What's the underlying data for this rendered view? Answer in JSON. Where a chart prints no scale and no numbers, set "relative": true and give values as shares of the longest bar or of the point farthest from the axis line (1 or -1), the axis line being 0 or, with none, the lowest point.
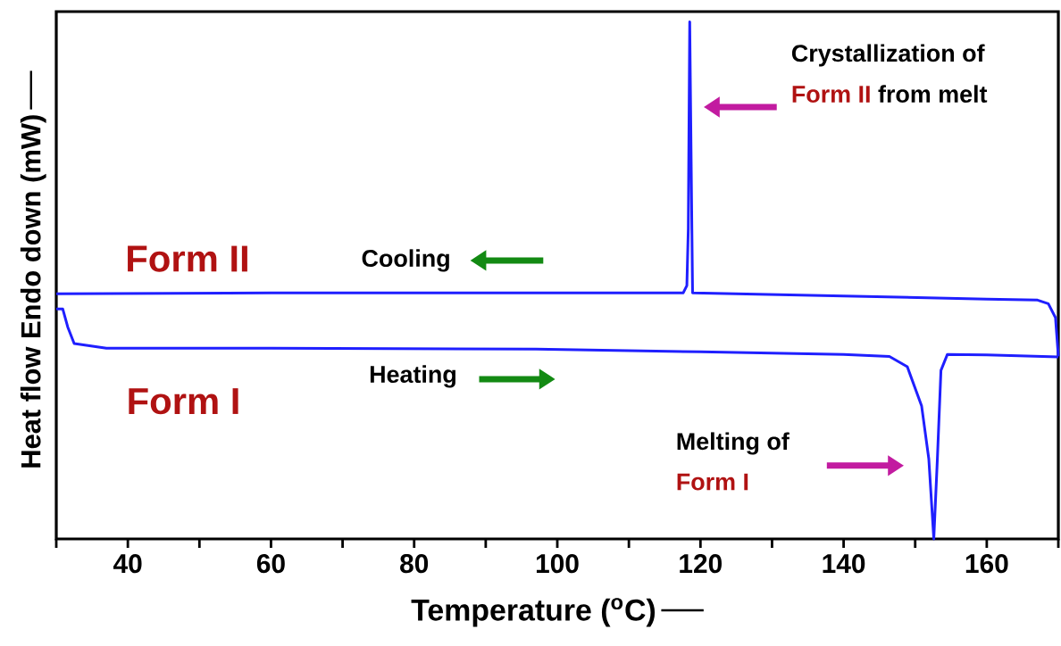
{
  "chart_data": {
    "type": "line",
    "relative": true,
    "xlabel": "Temperature ($^{o}$C)",
    "ylabel": "Heat flow Endo down (mW)",
    "xlim": [
      30,
      170
    ],
    "xticks": [
      {
        "value": 30,
        "label": null
      },
      40,
      {
        "value": 50,
        "label": null
      },
      60,
      {
        "value": 70,
        "label": null
      },
      80,
      {
        "value": 90,
        "label": null
      },
      100,
      {
        "value": 110,
        "label": null
      },
      120,
      {
        "value": 130,
        "label": null
      },
      140,
      {
        "value": 150,
        "label": null
      },
      160,
      {
        "value": 170,
        "label": null
      }
    ],
    "series": [
      {
        "color": "#1f1fff",
        "x": [
          30,
          60,
          90,
          117.6,
          118.1,
          118.3,
          118.5,
          118.8,
          118.9,
          140,
          160,
          167.1,
          168.6,
          169.6,
          170
        ],
        "values": [
          0.474,
          0.476,
          0.476,
          0.476,
          0.49,
          0.6,
          1.0,
          0.6,
          0.476,
          0.47,
          0.464,
          0.462,
          0.455,
          0.428,
          0.353
        ]
      },
      {
        "color": "#1f1fff",
        "x": [
          30,
          30.9,
          31.6,
          32.5,
          37,
          60,
          97,
          120,
          140,
          146.4,
          148.9,
          150.9,
          151.9,
          152.6,
          153.1,
          153.6,
          154.5,
          160,
          170
        ],
        "values": [
          0.445,
          0.445,
          0.41,
          0.378,
          0.369,
          0.369,
          0.367,
          0.362,
          0.357,
          0.353,
          0.333,
          0.257,
          0.155,
          0.0,
          0.155,
          0.326,
          0.357,
          0.356,
          0.352
        ]
      }
    ],
    "annotations": [
      "Form II",
      "Cooling",
      "Form I",
      "Heating",
      "Crystallization of",
      "Form II",
      "from melt",
      "Melting of",
      "Form I"
    ]
  }
}
